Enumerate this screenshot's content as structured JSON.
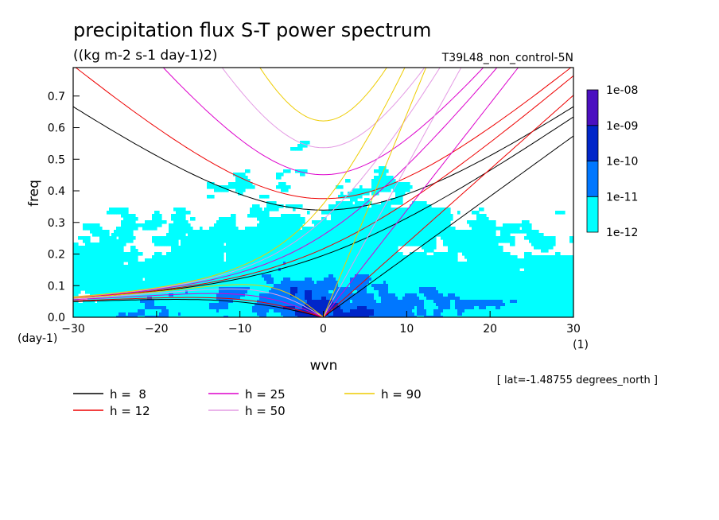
{
  "chart_data": {
    "type": "heatmap",
    "title": "precipitation flux S-T power spectrum",
    "units": "((kg m-2 s-1 day-1)2)",
    "run_label": "T39L48_non_control-5N",
    "xlabel": "wvn",
    "ylabel": "freq",
    "x_unit": "(1)",
    "y_unit": "(day-1)",
    "xlim": [
      -30,
      30
    ],
    "ylim": [
      0,
      0.79
    ],
    "x_ticks": [
      -30,
      -20,
      -10,
      0,
      10,
      20,
      30
    ],
    "y_ticks": [
      0,
      0.1,
      0.2,
      0.3,
      0.4,
      0.5,
      0.6,
      0.7
    ],
    "y_tick_labels": [
      "0.0",
      "0.1",
      "0.2",
      "0.3",
      "0.4",
      "0.5",
      "0.6",
      "0.7"
    ],
    "colorbar": {
      "levels": [
        "1e-12",
        "1e-11",
        "1e-10",
        "1e-09",
        "1e-08"
      ],
      "colors": [
        "#00ffff",
        "#0077ff",
        "#0026c9",
        "#4b0fc0"
      ]
    },
    "annotation": "[ lat=-1.48755 degrees_north ]",
    "series": [
      {
        "name": "h =  8",
        "h": 8,
        "color": "#000000"
      },
      {
        "name": "h = 12",
        "h": 12,
        "color": "#ee0000"
      },
      {
        "name": "h = 25",
        "h": 25,
        "color": "#dd00cc"
      },
      {
        "name": "h = 50",
        "h": 50,
        "color": "#e49be4"
      },
      {
        "name": "h = 90",
        "h": 90,
        "color": "#eecc00"
      }
    ]
  }
}
